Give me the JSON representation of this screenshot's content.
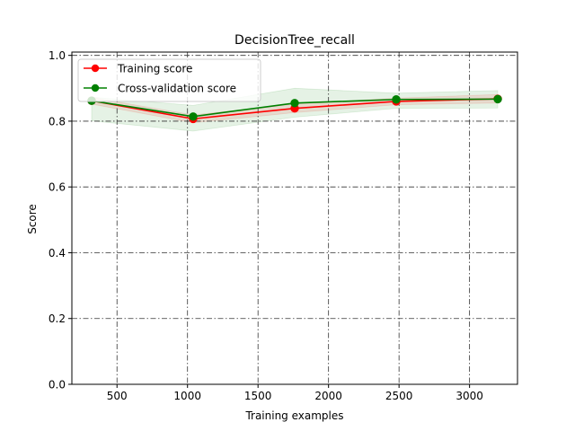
{
  "chart_data": {
    "type": "line",
    "title": "DecisionTree_recall",
    "xlabel": "Training examples",
    "ylabel": "Score",
    "x": [
      320,
      1040,
      1760,
      2480,
      3200
    ],
    "series": [
      {
        "name": "Training score",
        "color": "#ff0000",
        "marker": "circle",
        "values": [
          0.862,
          0.807,
          0.839,
          0.86,
          0.868
        ],
        "band_low": [
          0.852,
          0.795,
          0.826,
          0.85,
          0.855
        ],
        "band_high": [
          0.872,
          0.819,
          0.852,
          0.87,
          0.881
        ]
      },
      {
        "name": "Cross-validation score",
        "color": "#008000",
        "marker": "circle",
        "values": [
          0.862,
          0.814,
          0.855,
          0.866,
          0.867
        ],
        "band_low": [
          0.801,
          0.77,
          0.812,
          0.839,
          0.84
        ],
        "band_high": [
          0.873,
          0.848,
          0.9,
          0.885,
          0.893
        ]
      }
    ],
    "xlim": [
      180,
      3340
    ],
    "ylim": [
      0,
      1.01
    ],
    "xticks": [
      500,
      1000,
      1500,
      2000,
      2500,
      3000
    ],
    "xtick_labels": [
      "500",
      "1000",
      "1500",
      "2000",
      "2500",
      "3000"
    ],
    "yticks": [
      0,
      0.2,
      0.4,
      0.6,
      0.8,
      1.0
    ],
    "ytick_labels": [
      "0.0",
      "0.2",
      "0.4",
      "0.6",
      "0.8",
      "1.0"
    ],
    "grid": true,
    "grid_style": "dash-dot",
    "legend_position": "upper-left"
  }
}
